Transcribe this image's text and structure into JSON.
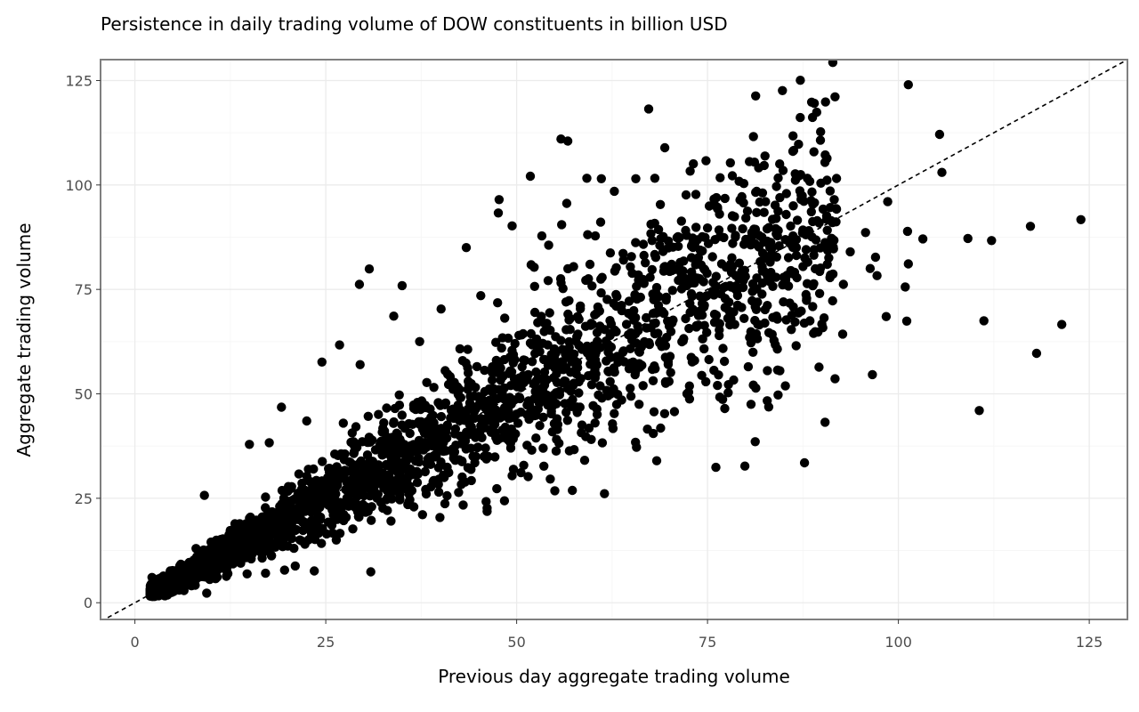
{
  "chart_data": {
    "type": "scatter",
    "title": "Persistence in daily trading volume of DOW constituents in billion USD",
    "xlabel": "Previous day aggregate trading volume",
    "ylabel": "Aggregate trading volume",
    "xlim": [
      -4.5,
      130
    ],
    "ylim": [
      -4,
      130
    ],
    "xticks": [
      "0",
      "25",
      "50",
      "75",
      "100",
      "125"
    ],
    "yticks": [
      "0",
      "25",
      "50",
      "75",
      "100",
      "125"
    ],
    "grid": true,
    "reference_line": {
      "type": "identity",
      "style": "dashed"
    },
    "cluster": {
      "n": 2400,
      "x_range": [
        2,
        92
      ],
      "slope": 1.0,
      "spread": 0.17
    },
    "points": [
      [
        101.3,
        124.0
      ],
      [
        81.3,
        121.3
      ],
      [
        67.3,
        118.2
      ],
      [
        89.3,
        117.4
      ],
      [
        105.4,
        112.1
      ],
      [
        55.8,
        111.0
      ],
      [
        56.7,
        110.5
      ],
      [
        69.4,
        108.9
      ],
      [
        74.8,
        105.8
      ],
      [
        78.0,
        105.3
      ],
      [
        105.7,
        103.0
      ],
      [
        51.8,
        102.1
      ],
      [
        59.2,
        101.6
      ],
      [
        61.1,
        101.5
      ],
      [
        65.6,
        101.5
      ],
      [
        68.1,
        101.6
      ],
      [
        62.8,
        98.5
      ],
      [
        87.1,
        98.6
      ],
      [
        79.5,
        97.2
      ],
      [
        91.6,
        96.5
      ],
      [
        47.7,
        96.5
      ],
      [
        82.6,
        96.0
      ],
      [
        98.6,
        96.0
      ],
      [
        47.6,
        93.3
      ],
      [
        88.6,
        93.6
      ],
      [
        90.6,
        92.6
      ],
      [
        123.9,
        91.7
      ],
      [
        61.0,
        91.1
      ],
      [
        55.9,
        90.5
      ],
      [
        49.4,
        90.2
      ],
      [
        117.3,
        90.1
      ],
      [
        67.6,
        90.6
      ],
      [
        75.0,
        89.7
      ],
      [
        79.6,
        89.5
      ],
      [
        95.7,
        88.6
      ],
      [
        101.2,
        88.9
      ],
      [
        80.8,
        88.6
      ],
      [
        59.3,
        88.1
      ],
      [
        53.3,
        87.8
      ],
      [
        84.0,
        88.3
      ],
      [
        60.3,
        87.8
      ],
      [
        71.0,
        87.4
      ],
      [
        103.2,
        87.1
      ],
      [
        109.1,
        87.2
      ],
      [
        112.2,
        86.7
      ],
      [
        90.4,
        86.2
      ],
      [
        66.6,
        85.8
      ],
      [
        72.9,
        85.4
      ],
      [
        73.3,
        85.6
      ],
      [
        54.2,
        85.6
      ],
      [
        43.4,
        85.0
      ],
      [
        91.5,
        84.7
      ],
      [
        93.7,
        84.0
      ],
      [
        85.6,
        82.6
      ],
      [
        97.0,
        82.7
      ],
      [
        87.5,
        80.5
      ],
      [
        89.8,
        80.1
      ],
      [
        101.3,
        81.1
      ],
      [
        51.9,
        80.9
      ],
      [
        52.3,
        80.3
      ],
      [
        30.7,
        79.9
      ],
      [
        96.3,
        80.0
      ],
      [
        86.4,
        79.1
      ],
      [
        97.2,
        78.3
      ],
      [
        92.8,
        76.2
      ],
      [
        29.4,
        76.2
      ],
      [
        35.0,
        75.9
      ],
      [
        100.9,
        75.6
      ],
      [
        59.6,
        81.0
      ],
      [
        64.0,
        82.0
      ],
      [
        70.3,
        81.0
      ],
      [
        33.9,
        68.6
      ],
      [
        98.4,
        68.5
      ],
      [
        111.2,
        67.5
      ],
      [
        101.1,
        67.4
      ],
      [
        121.4,
        66.6
      ],
      [
        92.7,
        64.3
      ],
      [
        26.8,
        61.7
      ],
      [
        37.3,
        62.5
      ],
      [
        118.1,
        59.7
      ],
      [
        24.5,
        57.6
      ],
      [
        29.5,
        57.0
      ],
      [
        96.6,
        54.6
      ],
      [
        89.6,
        56.4
      ],
      [
        91.7,
        53.6
      ],
      [
        85.2,
        51.9
      ],
      [
        81.0,
        52.1
      ],
      [
        76.3,
        52.0
      ],
      [
        80.7,
        47.5
      ],
      [
        110.6,
        46.0
      ],
      [
        68.0,
        45.7
      ],
      [
        67.9,
        40.5
      ],
      [
        65.7,
        37.2
      ],
      [
        58.9,
        34.1
      ],
      [
        76.1,
        32.4
      ],
      [
        79.9,
        32.7
      ],
      [
        87.7,
        33.5
      ],
      [
        90.4,
        43.2
      ],
      [
        54.4,
        29.6
      ],
      [
        49.4,
        30.4
      ],
      [
        51.5,
        30.2
      ],
      [
        55.0,
        26.8
      ],
      [
        57.3,
        26.9
      ],
      [
        61.5,
        26.1
      ],
      [
        47.4,
        27.3
      ],
      [
        48.4,
        24.4
      ],
      [
        46.0,
        24.2
      ],
      [
        43.0,
        23.4
      ],
      [
        42.4,
        26.4
      ],
      [
        30.9,
        7.4
      ],
      [
        23.5,
        7.6
      ],
      [
        21.0,
        8.8
      ],
      [
        19.6,
        7.8
      ],
      [
        14.7,
        6.9
      ],
      [
        9.4,
        2.3
      ],
      [
        3.2,
        2.1
      ],
      [
        2.5,
        5.3
      ],
      [
        4.3,
        2.6
      ],
      [
        5.8,
        3.0
      ],
      [
        7.9,
        4.2
      ],
      [
        9.1,
        25.7
      ],
      [
        15.0,
        37.9
      ],
      [
        17.6,
        38.3
      ],
      [
        19.2,
        46.8
      ],
      [
        22.5,
        43.5
      ],
      [
        27.3,
        43.0
      ],
      [
        40.1,
        70.3
      ],
      [
        45.3,
        73.5
      ],
      [
        47.5,
        71.8
      ],
      [
        57.0,
        65.4
      ]
    ]
  }
}
